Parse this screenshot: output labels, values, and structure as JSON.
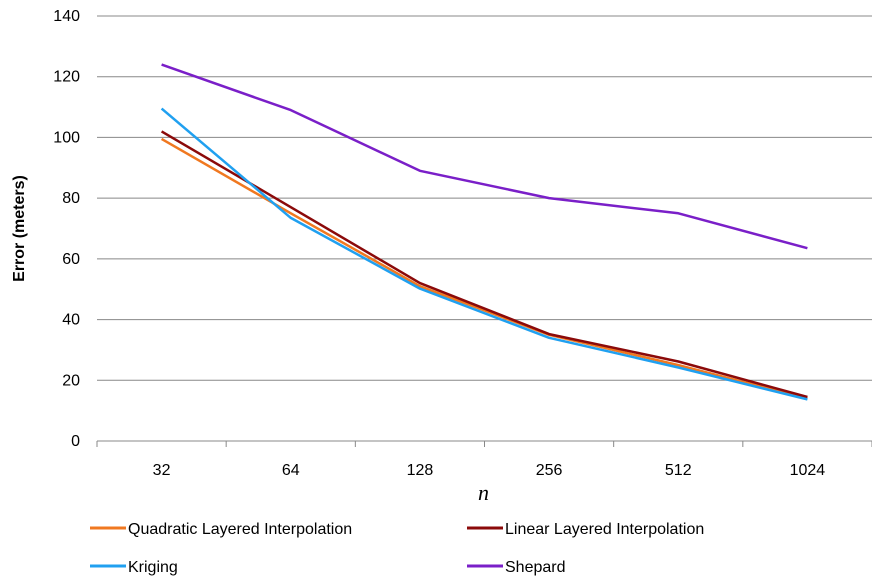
{
  "chart_data": {
    "type": "line",
    "categories": [
      "32",
      "64",
      "128",
      "256",
      "512",
      "1024"
    ],
    "xlabel": "n",
    "ylabel": "Error (meters)",
    "ylim": [
      0,
      140
    ],
    "yticks": [
      "0",
      "20",
      "40",
      "60",
      "80",
      "100",
      "120",
      "140"
    ],
    "grid": "horizontal",
    "legend_placement": "bottom",
    "series": [
      {
        "name": "Quadratic Layered Interpolation",
        "color": "#F07820",
        "values": [
          99.5,
          75,
          51,
          35,
          25,
          14
        ]
      },
      {
        "name": "Linear Layered Interpolation",
        "color": "#8B0A0A",
        "values": [
          102,
          77,
          52,
          35.2,
          26.2,
          14.5
        ]
      },
      {
        "name": "Kriging",
        "color": "#20A0F0",
        "values": [
          109.5,
          73.5,
          50.2,
          34,
          24.2,
          13.7
        ]
      },
      {
        "name": "Shepard",
        "color": "#7A1FC8",
        "values": [
          124,
          109,
          89,
          80,
          75,
          63.5
        ]
      }
    ]
  }
}
